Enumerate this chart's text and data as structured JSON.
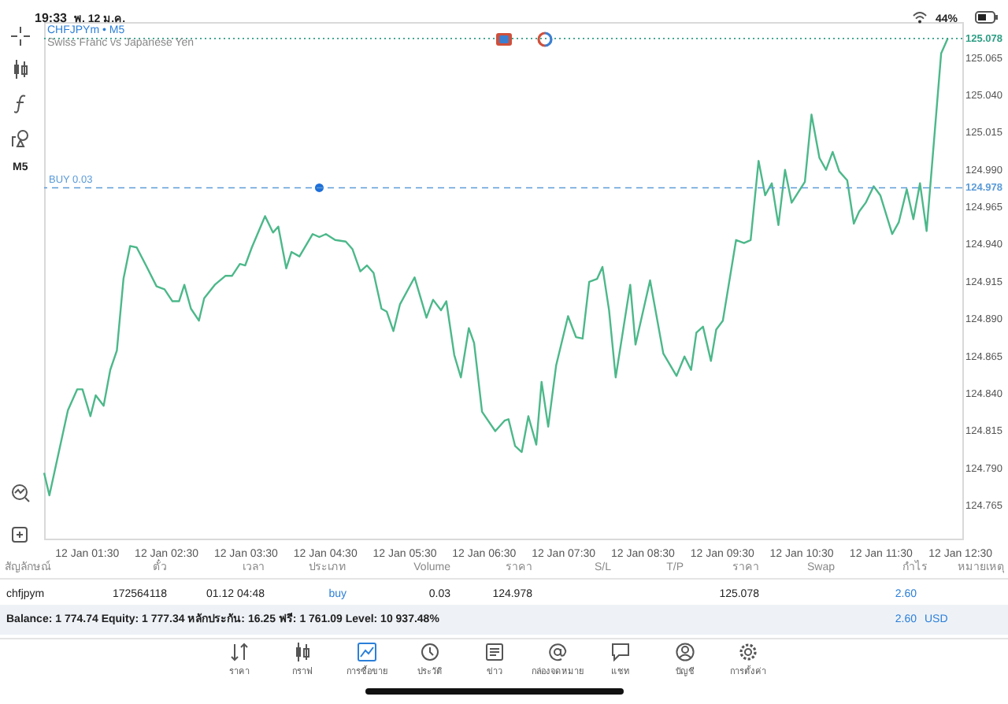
{
  "chart_data": {
    "type": "line",
    "title": "CHFJPYm • M5",
    "subtitle": "Swiss Franc vs Japanese Yen",
    "xlim": [
      "--01-12T00:58",
      "--01-12T12:32"
    ],
    "xticks": [
      {
        "value": "--01-12T01:30",
        "label": "12 Jan 01:30"
      },
      {
        "value": "--01-12T02:30",
        "label": "12 Jan 02:30"
      },
      {
        "value": "--01-12T03:30",
        "label": "12 Jan 03:30"
      },
      {
        "value": "--01-12T04:30",
        "label": "12 Jan 04:30"
      },
      {
        "value": "--01-12T05:30",
        "label": "12 Jan 05:30"
      },
      {
        "value": "--01-12T06:30",
        "label": "12 Jan 06:30"
      },
      {
        "value": "--01-12T07:30",
        "label": "12 Jan 07:30"
      },
      {
        "value": "--01-12T08:30",
        "label": "12 Jan 08:30"
      },
      {
        "value": "--01-12T09:30",
        "label": "12 Jan 09:30"
      },
      {
        "value": "--01-12T10:30",
        "label": "12 Jan 10:30"
      },
      {
        "value": "--01-12T11:30",
        "label": "12 Jan 11:30"
      },
      {
        "value": "--01-12T12:30",
        "label": "12 Jan 12:30"
      }
    ],
    "ylim": [
      124.743,
      125.089
    ],
    "yticks": [
      124.765,
      {
        "value": 124.79,
        "label": "124.790"
      },
      124.815,
      {
        "value": 124.84,
        "label": "124.840"
      },
      124.865,
      {
        "value": 124.89,
        "label": "124.890"
      },
      124.915,
      {
        "value": 124.94,
        "label": "124.940"
      },
      124.965,
      {
        "value": 124.99,
        "label": "124.990"
      },
      125.015,
      {
        "value": 125.04,
        "label": "125.040"
      },
      125.065
    ],
    "series": [
      {
        "color": "#4cb88a",
        "x": [
          "--01-12T00:58",
          "--01-12T01:02",
          "--01-12T01:16",
          "--01-12T01:23",
          "--01-12T01:27",
          "--01-12T01:33",
          "--01-12T01:37",
          "--01-12T01:43",
          "--01-12T01:48",
          "--01-12T01:53",
          "--01-12T01:58",
          "--01-12T02:03",
          "--01-12T02:08",
          "--01-12T02:15",
          "--01-12T02:23",
          "--01-12T02:29",
          "--01-12T02:35",
          "--01-12T02:40",
          "--01-12T02:44",
          "--01-12T02:49",
          "--01-12T02:55",
          "--01-12T02:59",
          "--01-12T03:07",
          "--01-12T03:15",
          "--01-12T03:20",
          "--01-12T03:26",
          "--01-12T03:30",
          "--01-12T03:35",
          "--01-12T03:45",
          "--01-12T03:51",
          "--01-12T03:55",
          "--01-12T04:01",
          "--01-12T04:05",
          "--01-12T04:11",
          "--01-12T04:21",
          "--01-12T04:26",
          "--01-12T04:31",
          "--01-12T04:38",
          "--01-12T04:46",
          "--01-12T04:51",
          "--01-12T04:57",
          "--01-12T05:02",
          "--01-12T05:07",
          "--01-12T05:13",
          "--01-12T05:17",
          "--01-12T05:22",
          "--01-12T05:27",
          "--01-12T05:38",
          "--01-12T05:47",
          "--01-12T05:52",
          "--01-12T05:58",
          "--01-12T06:02",
          "--01-12T06:08",
          "--01-12T06:13",
          "--01-12T06:19",
          "--01-12T06:23",
          "--01-12T06:29",
          "--01-12T06:39",
          "--01-12T06:46",
          "--01-12T06:49",
          "--01-12T06:54",
          "--01-12T06:59",
          "--01-12T07:04",
          "--01-12T07:10",
          "--01-12T07:14",
          "--01-12T07:19",
          "--01-12T07:25",
          "--01-12T07:34",
          "--01-12T07:40",
          "--01-12T07:45",
          "--01-12T07:50",
          "--01-12T07:56",
          "--01-12T08:00",
          "--01-12T08:05",
          "--01-12T08:10",
          "--01-12T08:21",
          "--01-12T08:25",
          "--01-12T08:36",
          "--01-12T08:46",
          "--01-12T08:56",
          "--01-12T09:02",
          "--01-12T09:07",
          "--01-12T09:11",
          "--01-12T09:16",
          "--01-12T09:22",
          "--01-12T09:26",
          "--01-12T09:31",
          "--01-12T09:41",
          "--01-12T09:47",
          "--01-12T09:52",
          "--01-12T09:58",
          "--01-12T10:03",
          "--01-12T10:08",
          "--01-12T10:13",
          "--01-12T10:18",
          "--01-12T10:23",
          "--01-12T10:33",
          "--01-12T10:38",
          "--01-12T10:44",
          "--01-12T10:49",
          "--01-12T10:54",
          "--01-12T10:59",
          "--01-12T11:05",
          "--01-12T11:10",
          "--01-12T11:14",
          "--01-12T11:19",
          "--01-12T11:25",
          "--01-12T11:30",
          "--01-12T11:39",
          "--01-12T11:44",
          "--01-12T11:50",
          "--01-12T11:55",
          "--01-12T12:00",
          "--01-12T12:05",
          "--01-12T12:16",
          "--01-12T12:21"
        ],
        "values": [
          124.787,
          124.772,
          124.829,
          124.843,
          124.843,
          124.825,
          124.839,
          124.832,
          124.856,
          124.869,
          124.917,
          124.939,
          124.938,
          124.926,
          124.912,
          124.91,
          124.902,
          124.902,
          124.913,
          124.897,
          124.889,
          124.904,
          124.913,
          124.919,
          124.919,
          124.927,
          124.926,
          124.938,
          124.959,
          124.948,
          124.952,
          124.924,
          124.935,
          124.932,
          124.947,
          124.945,
          124.947,
          124.943,
          124.942,
          124.937,
          124.922,
          124.926,
          124.921,
          124.897,
          124.895,
          124.882,
          124.9,
          124.918,
          124.891,
          124.903,
          124.896,
          124.902,
          124.866,
          124.851,
          124.884,
          124.874,
          124.828,
          124.815,
          124.822,
          124.823,
          124.805,
          124.801,
          124.825,
          124.806,
          124.848,
          124.818,
          124.859,
          124.892,
          124.878,
          124.877,
          124.915,
          124.917,
          124.925,
          124.896,
          124.851,
          124.913,
          124.873,
          124.916,
          124.867,
          124.852,
          124.865,
          124.856,
          124.881,
          124.885,
          124.862,
          124.883,
          124.889,
          124.943,
          124.941,
          124.943,
          124.996,
          124.973,
          124.981,
          124.953,
          124.99,
          124.968,
          124.982,
          125.027,
          124.998,
          124.99,
          125.002,
          124.989,
          124.983,
          124.954,
          124.962,
          124.968,
          124.979,
          124.973,
          124.947,
          124.955,
          124.977,
          124.957,
          124.981,
          124.949,
          125.068,
          125.078
        ]
      },
      {
        "type": "scatter",
        "color": "#1e6fd9",
        "marker": "circle",
        "x": [
          "--01-12T04:26"
        ],
        "values": [
          124.978
        ]
      }
    ],
    "ref_lines": [
      {
        "axis": "y",
        "value": 124.978,
        "label": "124.978",
        "color": "#5b9bd8",
        "line_style": "dashed"
      },
      {
        "axis": "y",
        "value": 125.078,
        "label": "125.078",
        "color": "#2e9e84",
        "line_style": "dotted"
      }
    ],
    "annotations": [
      "19:33",
      "พ. 12 ม.ค.",
      "44%",
      "M5",
      "สัญลักษณ์",
      "ตั๋ว",
      "เวลา",
      "ประเภท",
      "Volume",
      "ราคา",
      "S/L",
      "T/P",
      "ราคา",
      "Swap",
      "กำไร",
      "หมายเหตุ",
      "chfjpym",
      "172564118",
      "01.12 04:48",
      "buy",
      "0.03",
      "124.978",
      "125.078",
      "2.60",
      "Balance: 1 774.74 Equity: 1 777.34 หลักประกัน: 16.25 ฟรี: 1 761.09 Level: 10 937.48%",
      "2.60",
      "USD",
      "ราคา",
      "กราฟ",
      "การซื้อขาย",
      "ประวัติ",
      "ข่าว",
      "กล่องจดหมาย",
      "แชท",
      "บัญชี",
      "การตั้งค่า",
      {
        "text": "BUY 0.03",
        "y": 124.978
      }
    ]
  }
}
